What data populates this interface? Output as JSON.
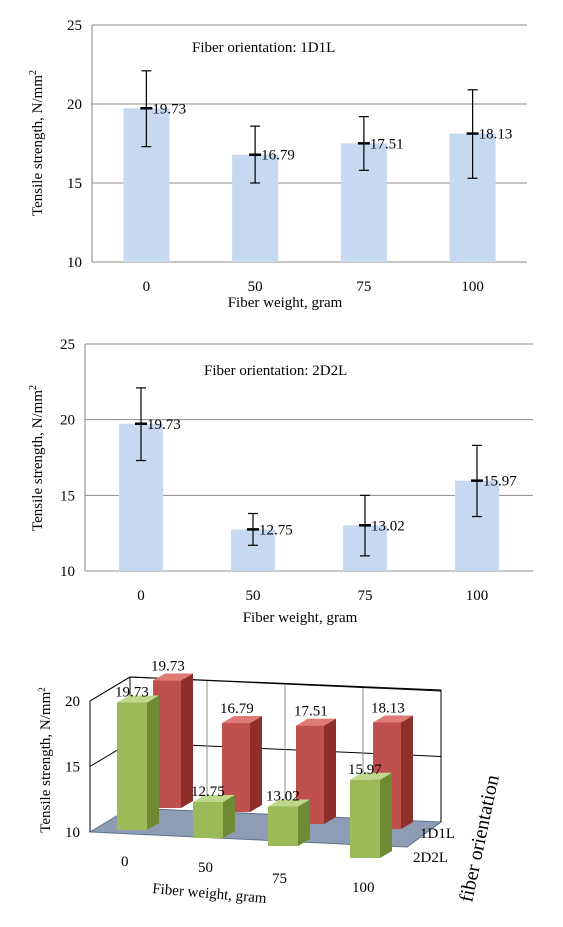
{
  "chart_data": [
    {
      "type": "bar",
      "annotation": "Fiber orientation: 1D1L",
      "xlabel": "Fiber weight, gram",
      "ylabel_main": "Tensile strength,  N/mm",
      "ylabel_sup": "2",
      "categories": [
        "0",
        "50",
        "75",
        "100"
      ],
      "values": [
        19.73,
        16.79,
        17.51,
        18.13
      ],
      "value_labels": [
        "19.73",
        "16.79",
        "17.51",
        "18.13"
      ],
      "error_low": [
        17.3,
        15.0,
        15.8,
        15.3
      ],
      "error_high": [
        22.1,
        18.6,
        19.2,
        20.9
      ],
      "ylim": [
        10,
        25
      ],
      "yticks": [
        "10",
        "15",
        "20",
        "25"
      ],
      "grid": true
    },
    {
      "type": "bar",
      "annotation": "Fiber orientation: 2D2L",
      "xlabel": "Fiber weight, gram",
      "ylabel_main": "Tensile strength,  N/mm",
      "ylabel_sup": "2",
      "categories": [
        "0",
        "50",
        "75",
        "100"
      ],
      "values": [
        19.73,
        12.75,
        13.02,
        15.97
      ],
      "value_labels": [
        "19.73",
        "12.75",
        "13.02",
        "15.97"
      ],
      "error_low": [
        17.3,
        11.7,
        11.0,
        13.6
      ],
      "error_high": [
        22.1,
        13.8,
        15.0,
        18.3
      ],
      "ylim": [
        10,
        25
      ],
      "yticks": [
        "10",
        "15",
        "20",
        "25"
      ],
      "grid": true
    },
    {
      "type": "bar",
      "xlabel": "Fiber weight, gram",
      "ylabel_main": "Tensile strength,  N/mm",
      "ylabel_sup": "2",
      "zlabel": "fiber orientation",
      "categories": [
        "0",
        "50",
        "75",
        "100"
      ],
      "yticks": [
        "10",
        "15",
        "20"
      ],
      "ylim": [
        10,
        20
      ],
      "series": [
        {
          "name": "1D1L",
          "color": "#c0504d",
          "values": [
            19.73,
            16.79,
            17.51,
            18.13
          ],
          "value_labels": [
            "19.73",
            "16.79",
            "17.51",
            "18.13"
          ]
        },
        {
          "name": "2D2L",
          "color": "#9bbb59",
          "values": [
            19.73,
            12.75,
            13.02,
            15.97
          ],
          "value_labels": [
            "19.73",
            "12.75",
            "13.02",
            "15.97"
          ]
        }
      ]
    }
  ]
}
